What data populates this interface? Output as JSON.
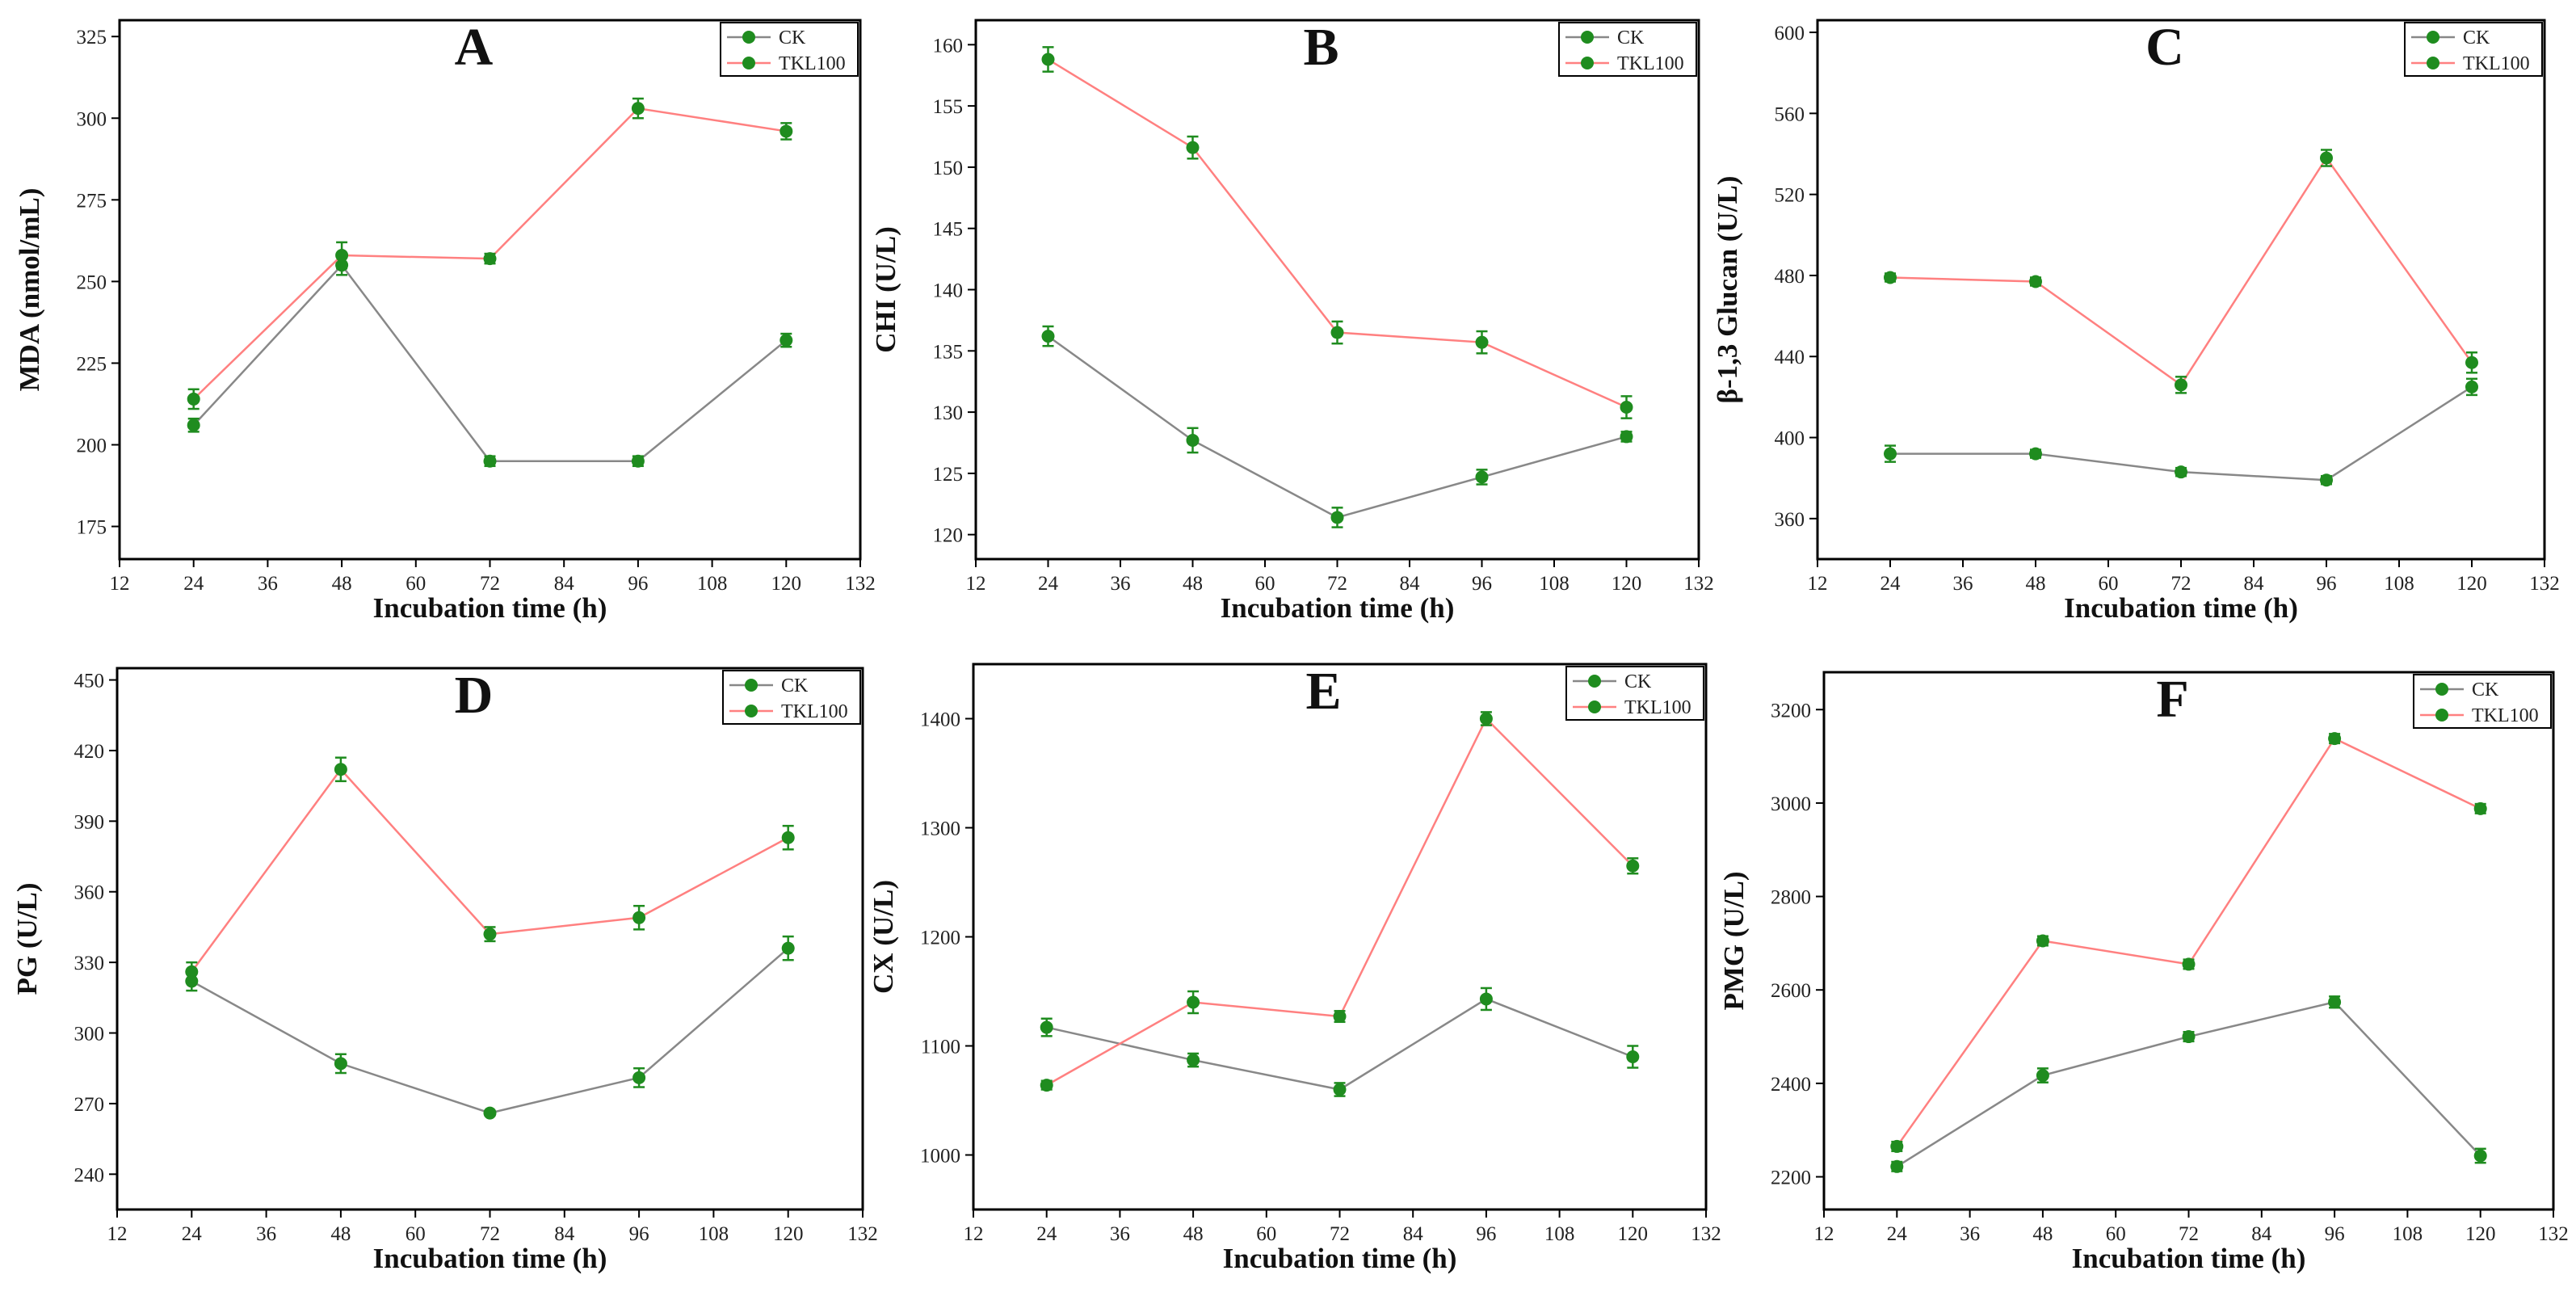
{
  "figure": {
    "name": "six-panel enzyme activity figure"
  },
  "colors": {
    "ck": "#888888",
    "tkl": "#ff8080",
    "marker": "#1f8c1f",
    "axis": "#000000"
  },
  "chart_data": [
    {
      "type": "line",
      "panel": "A",
      "xlabel": "Incubation time (h)",
      "ylabel": "MDA (nmol/mL)",
      "xlim": [
        12,
        132
      ],
      "xticks": [
        "12",
        "24",
        "36",
        "48",
        "60",
        "72",
        "84",
        "96",
        "108",
        "120",
        "132"
      ],
      "ylim": [
        165,
        330
      ],
      "yticks": [
        "175",
        "200",
        "225",
        "250",
        "275",
        "300",
        "325"
      ],
      "legend_position": "top-right",
      "x": [
        24,
        48,
        72,
        96,
        120
      ],
      "series": [
        {
          "name": "CK",
          "values": [
            206,
            255,
            195,
            195,
            232
          ],
          "errors": [
            2,
            3,
            1.5,
            1.5,
            2
          ]
        },
        {
          "name": "TKL100",
          "values": [
            214,
            258,
            257,
            303,
            296
          ],
          "errors": [
            3,
            4,
            1.5,
            3,
            2.5
          ]
        }
      ]
    },
    {
      "type": "line",
      "panel": "B",
      "xlabel": "Incubation time (h)",
      "ylabel": "CHI (U/L)",
      "xlim": [
        12,
        132
      ],
      "xticks": [
        "12",
        "24",
        "36",
        "48",
        "60",
        "72",
        "84",
        "96",
        "108",
        "120",
        "132"
      ],
      "ylim": [
        118,
        162
      ],
      "yticks": [
        "120",
        "125",
        "130",
        "135",
        "140",
        "145",
        "150",
        "155",
        "160"
      ],
      "legend_position": "top-right",
      "x": [
        24,
        48,
        72,
        96,
        120
      ],
      "series": [
        {
          "name": "CK",
          "values": [
            136.2,
            127.7,
            121.4,
            124.7,
            128
          ],
          "errors": [
            0.8,
            1,
            0.8,
            0.6,
            0.4
          ]
        },
        {
          "name": "TKL100",
          "values": [
            158.8,
            151.6,
            136.5,
            135.7,
            130.4
          ],
          "errors": [
            1,
            0.9,
            0.9,
            0.9,
            0.9
          ]
        }
      ]
    },
    {
      "type": "line",
      "panel": "C",
      "xlabel": "Incubation time (h)",
      "ylabel": "β-1,3 Glucan (U/L)",
      "xlim": [
        12,
        132
      ],
      "xticks": [
        "12",
        "24",
        "36",
        "48",
        "60",
        "72",
        "84",
        "96",
        "108",
        "120",
        "132"
      ],
      "ylim": [
        340,
        606
      ],
      "yticks": [
        "360",
        "400",
        "440",
        "480",
        "520",
        "560",
        "600"
      ],
      "legend_position": "top-right",
      "x": [
        24,
        48,
        72,
        96,
        120
      ],
      "series": [
        {
          "name": "CK",
          "values": [
            392,
            392,
            383,
            379,
            425
          ],
          "errors": [
            4,
            2,
            2,
            2,
            4
          ]
        },
        {
          "name": "TKL100",
          "values": [
            479,
            477,
            426,
            538,
            437
          ],
          "errors": [
            2,
            2,
            4,
            4,
            5
          ]
        }
      ]
    },
    {
      "type": "line",
      "panel": "D",
      "xlabel": "Incubation time (h)",
      "ylabel": "PG (U/L)",
      "xlim": [
        12,
        132
      ],
      "xticks": [
        "12",
        "24",
        "36",
        "48",
        "60",
        "72",
        "84",
        "96",
        "108",
        "120",
        "132"
      ],
      "ylim": [
        225,
        455
      ],
      "yticks": [
        "240",
        "270",
        "300",
        "330",
        "360",
        "390",
        "420",
        "450"
      ],
      "legend_position": "top-right",
      "x": [
        24,
        48,
        72,
        96,
        120
      ],
      "series": [
        {
          "name": "CK",
          "values": [
            322,
            287,
            266,
            281,
            336
          ],
          "errors": [
            4,
            4,
            1,
            4,
            5
          ]
        },
        {
          "name": "TKL100",
          "values": [
            326,
            412,
            342,
            349,
            383
          ],
          "errors": [
            4,
            5,
            3,
            5,
            5
          ]
        }
      ]
    },
    {
      "type": "line",
      "panel": "E",
      "xlabel": "Incubation time (h)",
      "ylabel": "CX (U/L)",
      "xlim": [
        12,
        132
      ],
      "xticks": [
        "12",
        "24",
        "36",
        "48",
        "60",
        "72",
        "84",
        "96",
        "108",
        "120",
        "132"
      ],
      "ylim": [
        950,
        1450
      ],
      "yticks": [
        "1000",
        "1100",
        "1200",
        "1300",
        "1400"
      ],
      "legend_position": "top-right",
      "x": [
        24,
        48,
        72,
        96,
        120
      ],
      "series": [
        {
          "name": "CK",
          "values": [
            1117,
            1087,
            1060,
            1143,
            1090
          ],
          "errors": [
            8,
            6,
            6,
            10,
            10
          ]
        },
        {
          "name": "TKL100",
          "values": [
            1064,
            1140,
            1127,
            1400,
            1265
          ],
          "errors": [
            4,
            10,
            5,
            6,
            7
          ]
        }
      ]
    },
    {
      "type": "line",
      "panel": "F",
      "xlabel": "Incubation time (h)",
      "ylabel": "PMG (U/L)",
      "xlim": [
        12,
        132
      ],
      "xticks": [
        "12",
        "24",
        "36",
        "48",
        "60",
        "72",
        "84",
        "96",
        "108",
        "120",
        "132"
      ],
      "ylim": [
        2130,
        3280
      ],
      "yticks": [
        "2200",
        "2400",
        "2600",
        "2800",
        "3000",
        "3200"
      ],
      "legend_position": "top-right",
      "x": [
        24,
        48,
        72,
        96,
        120
      ],
      "series": [
        {
          "name": "CK",
          "values": [
            2222,
            2417,
            2500,
            2574,
            2245
          ],
          "errors": [
            10,
            15,
            10,
            12,
            15
          ]
        },
        {
          "name": "TKL100",
          "values": [
            2265,
            2705,
            2655,
            3138,
            2988
          ],
          "errors": [
            10,
            10,
            10,
            10,
            10
          ]
        }
      ]
    }
  ]
}
